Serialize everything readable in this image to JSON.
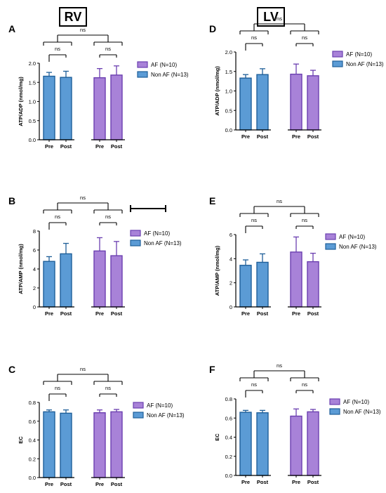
{
  "headers": {
    "rv": "RV",
    "lv": "LV"
  },
  "colors": {
    "af_fill": "#a882d8",
    "af_stroke": "#6b3fb0",
    "nonaf_fill": "#5b9bd5",
    "nonaf_stroke": "#1f5f99"
  },
  "chart_data": [
    {
      "id": "A",
      "panel_label": "A",
      "type": "bar",
      "ylabel": "ATP/ADP (nmol/mg)",
      "ylim": [
        0,
        2.0
      ],
      "yticks": [
        "0.0",
        "0.5",
        "1.0",
        "1.5",
        "2.0"
      ],
      "ytick_values": [
        0,
        0.5,
        1,
        1.5,
        2
      ],
      "categories": [
        "Pre",
        "Post",
        "Pre",
        "Post"
      ],
      "groups": [
        "Non AF",
        "Non AF",
        "AF",
        "AF"
      ],
      "values": [
        1.66,
        1.63,
        1.62,
        1.69
      ],
      "errors": [
        0.1,
        0.16,
        0.24,
        0.24
      ],
      "legend": [
        "AF (N=10)",
        "Non AF (N=13)"
      ],
      "annotations": [
        "ns",
        "ns",
        "ns"
      ]
    },
    {
      "id": "B",
      "panel_label": "B",
      "type": "bar",
      "ylabel": "ATP/AMP (nmol/mg)",
      "ylim": [
        0,
        8
      ],
      "yticks": [
        "0",
        "2",
        "4",
        "6",
        "8"
      ],
      "ytick_values": [
        0,
        2,
        4,
        6,
        8
      ],
      "categories": [
        "Pre",
        "Post",
        "Pre",
        "Post"
      ],
      "groups": [
        "Non AF",
        "Non AF",
        "AF",
        "AF"
      ],
      "values": [
        4.8,
        5.6,
        5.9,
        5.4
      ],
      "errors": [
        0.5,
        1.1,
        1.4,
        1.5
      ],
      "legend": [
        "AF (N=10)",
        "Non AF (N=13)"
      ],
      "annotations": [
        "ns",
        "ns",
        "ns"
      ]
    },
    {
      "id": "C",
      "panel_label": "C",
      "type": "bar",
      "ylabel": "EC",
      "ylim": [
        0,
        0.8
      ],
      "yticks": [
        "0.0",
        "0.2",
        "0.4",
        "0.6",
        "0.8"
      ],
      "ytick_values": [
        0,
        0.2,
        0.4,
        0.6,
        0.8
      ],
      "categories": [
        "Pre",
        "Post",
        "Pre",
        "Post"
      ],
      "groups": [
        "Non AF",
        "Non AF",
        "AF",
        "AF"
      ],
      "values": [
        0.7,
        0.685,
        0.69,
        0.7
      ],
      "errors": [
        0.02,
        0.035,
        0.03,
        0.025
      ],
      "legend": [
        "AF (N=10)",
        "Non AF (N=13)"
      ],
      "annotations": [
        "ns",
        "ns",
        "ns"
      ]
    },
    {
      "id": "D",
      "panel_label": "D",
      "type": "bar",
      "ylabel": "ATP/ADP (nmol/mg)",
      "ylim": [
        0,
        2.0
      ],
      "yticks": [
        "0.0",
        "0.5",
        "1.0",
        "1.5",
        "2.0"
      ],
      "ytick_values": [
        0,
        0.5,
        1,
        1.5,
        2
      ],
      "categories": [
        "Pre",
        "Post",
        "Pre",
        "Post"
      ],
      "groups": [
        "Non AF",
        "Non AF",
        "AF",
        "AF"
      ],
      "values": [
        1.33,
        1.42,
        1.43,
        1.39
      ],
      "errors": [
        0.09,
        0.15,
        0.26,
        0.14
      ],
      "legend": [
        "AF (N=10)",
        "Non AF (N=13)"
      ],
      "annotations": [
        "ns",
        "ns",
        "ns"
      ]
    },
    {
      "id": "E",
      "panel_label": "E",
      "type": "bar",
      "ylabel": "ATP/AMP (nmol/mg)",
      "ylim": [
        0,
        6
      ],
      "yticks": [
        "0",
        "2",
        "4",
        "6"
      ],
      "ytick_values": [
        0,
        2,
        4,
        6
      ],
      "categories": [
        "Pre",
        "Post",
        "Pre",
        "Post"
      ],
      "groups": [
        "Non AF",
        "Non AF",
        "AF",
        "AF"
      ],
      "values": [
        3.45,
        3.7,
        4.55,
        3.75
      ],
      "errors": [
        0.45,
        0.7,
        1.25,
        0.7
      ],
      "legend": [
        "AF (N=10)",
        "Non AF (N=13)"
      ],
      "annotations": [
        "ns",
        "ns",
        "ns"
      ]
    },
    {
      "id": "F",
      "panel_label": "F",
      "type": "bar",
      "ylabel": "EC",
      "ylim": [
        0,
        0.8
      ],
      "yticks": [
        "0.0",
        "0.2",
        "0.4",
        "0.6",
        "0.8"
      ],
      "ytick_values": [
        0,
        0.2,
        0.4,
        0.6,
        0.8
      ],
      "categories": [
        "Pre",
        "Post",
        "Pre",
        "Post"
      ],
      "groups": [
        "Non AF",
        "Non AF",
        "AF",
        "AF"
      ],
      "values": [
        0.66,
        0.655,
        0.62,
        0.665
      ],
      "errors": [
        0.02,
        0.025,
        0.075,
        0.025
      ],
      "legend": [
        "AF (N=10)",
        "Non AF (N=13)"
      ],
      "annotations": [
        "ns",
        "ns",
        "ns"
      ]
    }
  ]
}
